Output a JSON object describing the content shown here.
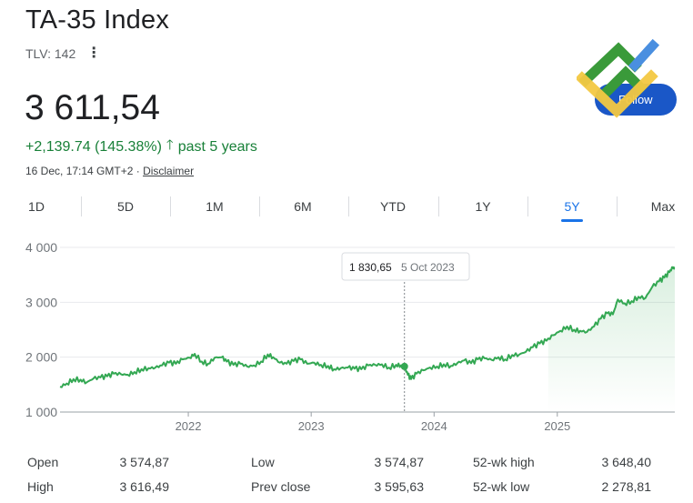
{
  "header": {
    "title": "TA-35 Index",
    "exchange": "TLV: 142",
    "price": "3 611,54",
    "change_text": "+2,139.74 (145.38%)",
    "change_period": "past 5 years",
    "timestamp": "16 Dec, 17:14 GMT+2 · ",
    "disclaimer": "Disclaimer",
    "follow_label": "Follow",
    "accent_color": "#1a73e8",
    "positive_color": "#188038"
  },
  "tabs": [
    {
      "label": "1D",
      "active": false
    },
    {
      "label": "5D",
      "active": false
    },
    {
      "label": "1M",
      "active": false
    },
    {
      "label": "6M",
      "active": false
    },
    {
      "label": "YTD",
      "active": false
    },
    {
      "label": "1Y",
      "active": false
    },
    {
      "label": "5Y",
      "active": true
    },
    {
      "label": "Max",
      "active": false
    }
  ],
  "chart_data": {
    "type": "line",
    "y_ticks": [
      "4 000",
      "3 000",
      "2 000",
      "1 000"
    ],
    "y_tick_values": [
      4000,
      3000,
      2000,
      1000
    ],
    "x_ticks": [
      "2022",
      "2023",
      "2024",
      "2025"
    ],
    "x_tick_values": [
      "2022-01-01",
      "2023-01-01",
      "2024-01-01",
      "2025-01-01"
    ],
    "ylim": [
      1000,
      4000
    ],
    "xlim": [
      "2020-12-16",
      "2025-12-16"
    ],
    "grid": "horizontal",
    "line_color": "#34a853",
    "tooltip": {
      "value": "1 830,65",
      "date": "5 Oct 2023",
      "x": "2023-10-05",
      "y": 1830.65
    },
    "series": [
      {
        "points": [
          [
            "2020-12-16",
            1460
          ],
          [
            "2021-01-05",
            1520
          ],
          [
            "2021-01-25",
            1600
          ],
          [
            "2021-02-15",
            1590
          ],
          [
            "2021-03-05",
            1540
          ],
          [
            "2021-03-25",
            1610
          ],
          [
            "2021-04-15",
            1630
          ],
          [
            "2021-05-05",
            1650
          ],
          [
            "2021-05-25",
            1700
          ],
          [
            "2021-06-15",
            1690
          ],
          [
            "2021-07-05",
            1680
          ],
          [
            "2021-07-25",
            1730
          ],
          [
            "2021-08-15",
            1780
          ],
          [
            "2021-09-05",
            1800
          ],
          [
            "2021-09-25",
            1810
          ],
          [
            "2021-10-15",
            1850
          ],
          [
            "2021-11-05",
            1900
          ],
          [
            "2021-11-25",
            1880
          ],
          [
            "2021-12-15",
            1960
          ],
          [
            "2022-01-05",
            1990
          ],
          [
            "2022-01-20",
            2060
          ],
          [
            "2022-02-10",
            1920
          ],
          [
            "2022-03-01",
            1880
          ],
          [
            "2022-03-20",
            1990
          ],
          [
            "2022-04-10",
            2000
          ],
          [
            "2022-04-25",
            1920
          ],
          [
            "2022-05-15",
            1860
          ],
          [
            "2022-06-05",
            1880
          ],
          [
            "2022-06-25",
            1830
          ],
          [
            "2022-07-15",
            1850
          ],
          [
            "2022-08-05",
            1920
          ],
          [
            "2022-08-25",
            2050
          ],
          [
            "2022-09-10",
            2000
          ],
          [
            "2022-09-30",
            1900
          ],
          [
            "2022-10-20",
            1880
          ],
          [
            "2022-11-10",
            1930
          ],
          [
            "2022-11-30",
            1960
          ],
          [
            "2022-12-20",
            1880
          ],
          [
            "2023-01-10",
            1900
          ],
          [
            "2023-01-30",
            1860
          ],
          [
            "2023-02-20",
            1840
          ],
          [
            "2023-03-10",
            1780
          ],
          [
            "2023-03-30",
            1800
          ],
          [
            "2023-04-20",
            1810
          ],
          [
            "2023-05-10",
            1790
          ],
          [
            "2023-05-30",
            1780
          ],
          [
            "2023-06-20",
            1850
          ],
          [
            "2023-07-10",
            1860
          ],
          [
            "2023-07-30",
            1870
          ],
          [
            "2023-08-20",
            1810
          ],
          [
            "2023-09-10",
            1860
          ],
          [
            "2023-09-25",
            1850
          ],
          [
            "2023-10-05",
            1830.65
          ],
          [
            "2023-10-15",
            1680
          ],
          [
            "2023-10-25",
            1600
          ],
          [
            "2023-11-10",
            1700
          ],
          [
            "2023-11-30",
            1760
          ],
          [
            "2023-12-20",
            1810
          ],
          [
            "2024-01-10",
            1830
          ],
          [
            "2024-01-30",
            1870
          ],
          [
            "2024-02-20",
            1840
          ],
          [
            "2024-03-10",
            1890
          ],
          [
            "2024-03-30",
            1940
          ],
          [
            "2024-04-20",
            1890
          ],
          [
            "2024-05-10",
            1960
          ],
          [
            "2024-05-30",
            1980
          ],
          [
            "2024-06-20",
            1950
          ],
          [
            "2024-07-10",
            2000
          ],
          [
            "2024-07-30",
            1960
          ],
          [
            "2024-08-20",
            2040
          ],
          [
            "2024-09-10",
            2050
          ],
          [
            "2024-09-30",
            2100
          ],
          [
            "2024-10-20",
            2180
          ],
          [
            "2024-11-10",
            2250
          ],
          [
            "2024-11-30",
            2300
          ],
          [
            "2024-12-20",
            2400
          ],
          [
            "2025-01-10",
            2480
          ],
          [
            "2025-01-30",
            2560
          ],
          [
            "2025-02-20",
            2500
          ],
          [
            "2025-03-10",
            2480
          ],
          [
            "2025-03-30",
            2460
          ],
          [
            "2025-04-20",
            2560
          ],
          [
            "2025-05-10",
            2700
          ],
          [
            "2025-05-30",
            2800
          ],
          [
            "2025-06-15",
            2780
          ],
          [
            "2025-06-30",
            3050
          ],
          [
            "2025-07-20",
            2980
          ],
          [
            "2025-08-10",
            3020
          ],
          [
            "2025-08-30",
            3100
          ],
          [
            "2025-09-20",
            3080
          ],
          [
            "2025-10-10",
            3280
          ],
          [
            "2025-10-30",
            3380
          ],
          [
            "2025-11-15",
            3450
          ],
          [
            "2025-11-30",
            3550
          ],
          [
            "2025-12-10",
            3640
          ],
          [
            "2025-12-16",
            3611.54
          ]
        ]
      }
    ]
  },
  "stats": [
    {
      "label": "Open",
      "value": "3 574,87"
    },
    {
      "label": "High",
      "value": "3 616,49"
    },
    {
      "label": "Low",
      "value": "3 574,87"
    },
    {
      "label": "Prev close",
      "value": "3 595,63"
    },
    {
      "label": "52-wk high",
      "value": "3 648,40"
    },
    {
      "label": "52-wk low",
      "value": "2 278,81"
    }
  ]
}
